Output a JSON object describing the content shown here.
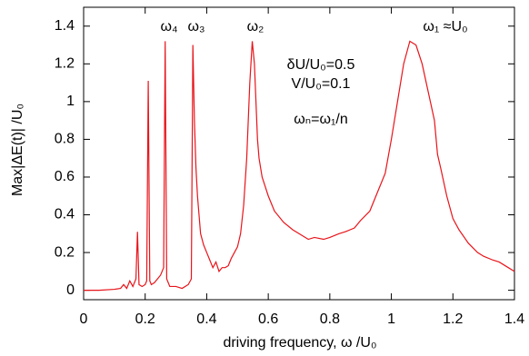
{
  "chart_data": {
    "type": "line",
    "x_label": "driving frequency, ω /U₀",
    "y_label": "Max|ΔE(t)| /U₀",
    "annotations": [
      "ω₄",
      "ω₃",
      "ω₂",
      "ω₁ ≈U₀",
      "δU/U₀=0.5",
      "V/U₀=0.1",
      "ωₙ=ω₁/n"
    ],
    "xlim": [
      0,
      1.4
    ],
    "ylim": [
      -0.05,
      1.5
    ],
    "xticks": [
      0,
      0.2,
      0.4,
      0.6,
      0.8,
      1,
      1.2,
      1.4
    ],
    "yticks": [
      0,
      0.2,
      0.4,
      0.6,
      0.8,
      1,
      1.2,
      1.4
    ],
    "series": [
      {
        "color": "#e8141a",
        "x": [
          0,
          0.05,
          0.1,
          0.12,
          0.13,
          0.14,
          0.15,
          0.16,
          0.17,
          0.175,
          0.18,
          0.19,
          0.2,
          0.205,
          0.21,
          0.215,
          0.22,
          0.23,
          0.24,
          0.25,
          0.26,
          0.265,
          0.27,
          0.28,
          0.3,
          0.32,
          0.34,
          0.35,
          0.355,
          0.36,
          0.365,
          0.37,
          0.38,
          0.39,
          0.4,
          0.41,
          0.42,
          0.43,
          0.44,
          0.45,
          0.46,
          0.47,
          0.48,
          0.49,
          0.5,
          0.51,
          0.52,
          0.53,
          0.54,
          0.548,
          0.555,
          0.56,
          0.565,
          0.57,
          0.58,
          0.59,
          0.6,
          0.62,
          0.65,
          0.68,
          0.7,
          0.73,
          0.75,
          0.78,
          0.8,
          0.83,
          0.85,
          0.88,
          0.9,
          0.93,
          0.95,
          0.98,
          1.0,
          1.02,
          1.04,
          1.06,
          1.07,
          1.08,
          1.1,
          1.12,
          1.14,
          1.15,
          1.16,
          1.18,
          1.2,
          1.22,
          1.25,
          1.28,
          1.3,
          1.33,
          1.35,
          1.38,
          1.4
        ],
        "values": [
          0,
          0,
          0.005,
          0.01,
          0.03,
          0.01,
          0.05,
          0.02,
          0.06,
          0.31,
          0.03,
          0.02,
          0.03,
          0.05,
          1.11,
          0.05,
          0.03,
          0.04,
          0.06,
          0.08,
          0.12,
          1.32,
          0.06,
          0.02,
          0.02,
          0.01,
          0.03,
          0.06,
          1.3,
          0.9,
          0.65,
          0.5,
          0.3,
          0.24,
          0.2,
          0.16,
          0.12,
          0.15,
          0.1,
          0.12,
          0.12,
          0.13,
          0.17,
          0.2,
          0.23,
          0.3,
          0.45,
          0.7,
          1.1,
          1.32,
          1.2,
          1.0,
          0.8,
          0.7,
          0.6,
          0.55,
          0.5,
          0.42,
          0.36,
          0.32,
          0.3,
          0.27,
          0.28,
          0.27,
          0.28,
          0.3,
          0.31,
          0.33,
          0.37,
          0.42,
          0.5,
          0.62,
          0.8,
          1.0,
          1.2,
          1.32,
          1.31,
          1.3,
          1.2,
          1.05,
          0.9,
          0.72,
          0.65,
          0.5,
          0.38,
          0.32,
          0.25,
          0.2,
          0.18,
          0.16,
          0.15,
          0.12,
          0.1
        ]
      }
    ]
  }
}
